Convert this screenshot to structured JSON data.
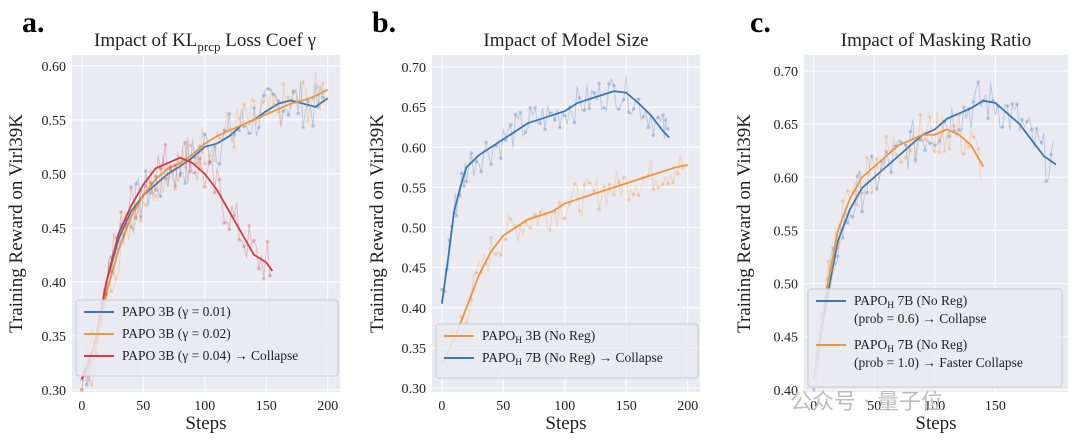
{
  "watermark": "公众号 · 量子位",
  "colors": {
    "blue": "#3a78b5",
    "orange": "#f0963a",
    "red": "#d43d3d"
  },
  "chart_data": [
    {
      "letter": "a.",
      "type": "line",
      "title_main": "Impact of KL",
      "title_sub": "prcp",
      "title_tail": " Loss Coef γ",
      "xlabel": "Steps",
      "ylabel": "Training Reward on Virl39K",
      "xlim": [
        -8,
        210
      ],
      "ylim": [
        0.298,
        0.61
      ],
      "xticks": [
        0,
        50,
        100,
        150,
        200
      ],
      "xtick_labels": [
        "0",
        "50",
        "100",
        "150",
        "200"
      ],
      "yticks": [
        0.3,
        0.35,
        0.4,
        0.45,
        0.5,
        0.55,
        0.6
      ],
      "ytick_labels": [
        "0.30",
        "0.35",
        "0.40",
        "0.45",
        "0.50",
        "0.55",
        "0.60"
      ],
      "legend_position": "lower-left",
      "series": [
        {
          "name": "PAPO 3B (γ = 0.01)",
          "color": "#3a78b5",
          "x": [
            0,
            10,
            20,
            30,
            40,
            50,
            60,
            70,
            80,
            90,
            100,
            110,
            120,
            130,
            140,
            150,
            160,
            170,
            180,
            190,
            200
          ],
          "y": [
            0.31,
            0.34,
            0.4,
            0.44,
            0.465,
            0.48,
            0.49,
            0.5,
            0.507,
            0.515,
            0.525,
            0.528,
            0.535,
            0.545,
            0.55,
            0.558,
            0.565,
            0.568,
            0.565,
            0.562,
            0.57
          ]
        },
        {
          "name": "PAPO 3B (γ = 0.02)",
          "color": "#f0963a",
          "x": [
            0,
            10,
            20,
            30,
            40,
            50,
            60,
            70,
            80,
            90,
            100,
            110,
            120,
            130,
            140,
            150,
            160,
            170,
            180,
            190,
            200
          ],
          "y": [
            0.31,
            0.33,
            0.39,
            0.43,
            0.46,
            0.48,
            0.495,
            0.505,
            0.51,
            0.518,
            0.528,
            0.535,
            0.54,
            0.545,
            0.55,
            0.555,
            0.56,
            0.565,
            0.568,
            0.572,
            0.578
          ]
        },
        {
          "name": "PAPO 3B (γ = 0.04) → Collapse",
          "color": "#d43d3d",
          "x": [
            0,
            10,
            20,
            30,
            40,
            50,
            60,
            70,
            80,
            90,
            100,
            110,
            120,
            130,
            140,
            150,
            155
          ],
          "y": [
            0.31,
            0.34,
            0.4,
            0.445,
            0.47,
            0.49,
            0.505,
            0.51,
            0.515,
            0.51,
            0.5,
            0.485,
            0.465,
            0.445,
            0.425,
            0.418,
            0.41
          ]
        }
      ]
    },
    {
      "letter": "b.",
      "type": "line",
      "title": "Impact of Model Size",
      "xlabel": "Steps",
      "ylabel": "Training Reward on Virl39K",
      "xlim": [
        -8,
        210
      ],
      "ylim": [
        0.295,
        0.715
      ],
      "xticks": [
        0,
        50,
        100,
        150,
        200
      ],
      "xtick_labels": [
        "0",
        "50",
        "100",
        "150",
        "200"
      ],
      "yticks": [
        0.3,
        0.35,
        0.4,
        0.45,
        0.5,
        0.55,
        0.6,
        0.65,
        0.7
      ],
      "ytick_labels": [
        "0.30",
        "0.35",
        "0.40",
        "0.45",
        "0.50",
        "0.55",
        "0.60",
        "0.65",
        "0.70"
      ],
      "legend_position": "lower-left",
      "series": [
        {
          "name_main": "PAPO",
          "name_sub": "H",
          "name_tail": " 3B (No Reg)",
          "color": "#f0963a",
          "x": [
            0,
            10,
            20,
            30,
            40,
            50,
            60,
            70,
            80,
            90,
            100,
            110,
            120,
            130,
            140,
            150,
            160,
            170,
            180,
            190,
            200
          ],
          "y": [
            0.33,
            0.36,
            0.4,
            0.44,
            0.47,
            0.49,
            0.5,
            0.51,
            0.515,
            0.52,
            0.53,
            0.535,
            0.54,
            0.545,
            0.55,
            0.555,
            0.56,
            0.565,
            0.57,
            0.575,
            0.578
          ]
        },
        {
          "name_main": "PAPO",
          "name_sub": "H",
          "name_tail": " 7B (No Reg) → Collapse",
          "color": "#3a78b5",
          "x": [
            0,
            5,
            10,
            15,
            20,
            30,
            40,
            50,
            60,
            70,
            80,
            90,
            100,
            110,
            120,
            130,
            140,
            150,
            160,
            170,
            180,
            185
          ],
          "y": [
            0.405,
            0.46,
            0.52,
            0.55,
            0.575,
            0.59,
            0.6,
            0.61,
            0.62,
            0.63,
            0.635,
            0.64,
            0.645,
            0.655,
            0.66,
            0.665,
            0.67,
            0.668,
            0.655,
            0.64,
            0.62,
            0.612
          ]
        }
      ]
    },
    {
      "letter": "c.",
      "type": "line",
      "title": "Impact of Masking Ratio",
      "xlabel": "Steps",
      "ylabel": "Training Reward on Virl39K",
      "xlim": [
        -8,
        210
      ],
      "ylim": [
        0.398,
        0.715
      ],
      "xticks": [
        0,
        50,
        100,
        150
      ],
      "xtick_labels": [
        "0",
        "50",
        "100",
        "150"
      ],
      "yticks": [
        0.4,
        0.45,
        0.5,
        0.55,
        0.6,
        0.65,
        0.7
      ],
      "ytick_labels": [
        "0.40",
        "0.45",
        "0.50",
        "0.55",
        "0.60",
        "0.65",
        "0.70"
      ],
      "legend_position": "lower-center",
      "series": [
        {
          "name_main": "PAPO",
          "name_sub": "H",
          "name_tail": " 7B (No Reg)",
          "name_line2": "(prob = 0.6) → Collapse",
          "color": "#3a78b5",
          "x": [
            0,
            10,
            20,
            30,
            40,
            50,
            60,
            70,
            80,
            90,
            100,
            110,
            120,
            130,
            140,
            150,
            160,
            170,
            180,
            190,
            200
          ],
          "y": [
            0.41,
            0.48,
            0.54,
            0.57,
            0.59,
            0.6,
            0.61,
            0.62,
            0.63,
            0.64,
            0.645,
            0.655,
            0.66,
            0.665,
            0.672,
            0.67,
            0.66,
            0.65,
            0.635,
            0.62,
            0.612
          ]
        },
        {
          "name_main": "PAPO",
          "name_sub": "H",
          "name_tail": " 7B (No Reg)",
          "name_line2": "(prob = 1.0) → Faster Collapse",
          "color": "#f0963a",
          "x": [
            0,
            10,
            20,
            30,
            40,
            50,
            60,
            70,
            80,
            90,
            100,
            110,
            120,
            130,
            140
          ],
          "y": [
            0.41,
            0.49,
            0.55,
            0.58,
            0.6,
            0.61,
            0.62,
            0.63,
            0.635,
            0.64,
            0.64,
            0.645,
            0.64,
            0.63,
            0.61
          ]
        }
      ]
    }
  ]
}
